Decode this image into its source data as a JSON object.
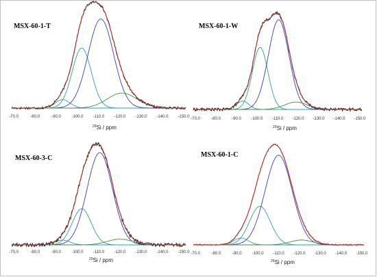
{
  "figure": {
    "border_color": "#bfbfbf",
    "background": "#ffffff"
  },
  "chart_data": [
    {
      "type": "line",
      "title": "MSX-60-1-T",
      "xlabel": {
        "superscript": "29",
        "text": "Si / ppm"
      },
      "x_ticks": [
        "-70.0",
        "-80.0",
        "-90.0",
        "-100.0",
        "-110.0",
        "-120.0",
        "-130.0",
        "-140.0",
        "-150.0"
      ],
      "x_reversed": true,
      "xlim": [
        -69,
        -151
      ],
      "ylim": [
        0,
        1.05
      ],
      "grid": false,
      "components": [
        {
          "center": -93,
          "height": 0.09,
          "width": 3.5,
          "color": "#2f9e9e"
        },
        {
          "center": -102,
          "height": 0.64,
          "width": 4.5,
          "color": "#2f9e9e"
        },
        {
          "center": -111,
          "height": 0.95,
          "width": 6.0,
          "color": "#3a3acf"
        },
        {
          "center": -121,
          "height": 0.16,
          "width": 7.0,
          "color": "#3f8f3f"
        }
      ],
      "experimental": {
        "color": "#222222",
        "noise": 0.012
      },
      "envelope": {
        "color": "#c0392b"
      },
      "baseline": {
        "color": "#7a4fb0"
      }
    },
    {
      "type": "line",
      "title": "MSX-60-1-W",
      "xlabel": {
        "superscript": "29",
        "text": "Si / ppm"
      },
      "x_ticks": [
        "-70.0",
        "-80.0",
        "-90.0",
        "-100.0",
        "-110.0",
        "-120.0",
        "-130.0",
        "-140.0",
        "-150.0"
      ],
      "x_reversed": true,
      "xlim": [
        -69,
        -151
      ],
      "ylim": [
        0,
        1.05
      ],
      "grid": false,
      "components": [
        {
          "center": -93,
          "height": 0.09,
          "width": 3.0,
          "color": "#2f9e9e"
        },
        {
          "center": -101.5,
          "height": 0.67,
          "width": 3.8,
          "color": "#2f9e9e"
        },
        {
          "center": -110.5,
          "height": 0.97,
          "width": 5.0,
          "color": "#3a3acf"
        },
        {
          "center": -119,
          "height": 0.08,
          "width": 5.5,
          "color": "#3f8f3f"
        }
      ],
      "experimental": {
        "color": "#222222",
        "noise": 0.015
      },
      "envelope": {
        "color": "#c0392b"
      },
      "baseline": {
        "color": "#7a4fb0"
      }
    },
    {
      "type": "line",
      "title": "MSX-60-3-C",
      "xlabel": {
        "superscript": "29",
        "text": "Si / ppm"
      },
      "x_ticks": [
        "-70.0",
        "-80.0",
        "-90.0",
        "-100.0",
        "-110.0",
        "-120.0",
        "-130.0",
        "-140.0",
        "-150.0"
      ],
      "x_reversed": true,
      "xlim": [
        -69,
        -151
      ],
      "ylim": [
        0,
        1.05
      ],
      "grid": false,
      "components": [
        {
          "center": -93,
          "height": 0.05,
          "width": 3.5,
          "color": "#2f9e9e"
        },
        {
          "center": -102,
          "height": 0.38,
          "width": 4.5,
          "color": "#2f9e9e"
        },
        {
          "center": -110.5,
          "height": 0.97,
          "width": 6.0,
          "color": "#3a3acf"
        },
        {
          "center": -120,
          "height": 0.06,
          "width": 6.0,
          "color": "#3f8f3f"
        }
      ],
      "experimental": {
        "color": "#222222",
        "noise": 0.018
      },
      "envelope": {
        "color": "#c0392b"
      },
      "baseline": {
        "color": "#7a4fb0"
      }
    },
    {
      "type": "line",
      "title": "MSX-60-1-C",
      "xlabel": {
        "superscript": "29",
        "text": "Si / ppm"
      },
      "x_ticks": [
        "-70.0",
        "-80.0",
        "-90.0",
        "-100.0",
        "-110.0",
        "-120.0",
        "-130.0",
        "-140.0",
        "-150.0"
      ],
      "x_reversed": true,
      "xlim": [
        -69,
        -151
      ],
      "ylim": [
        0,
        1.05
      ],
      "grid": false,
      "components": [
        {
          "center": -92,
          "height": 0.07,
          "width": 3.5,
          "color": "#2f9e9e"
        },
        {
          "center": -101,
          "height": 0.4,
          "width": 5.0,
          "color": "#2f9e9e"
        },
        {
          "center": -110,
          "height": 0.93,
          "width": 6.5,
          "color": "#3a3acf"
        },
        {
          "center": -121,
          "height": 0.05,
          "width": 5.5,
          "color": "#3f8f3f"
        }
      ],
      "experimental": {
        "color": "#7a2a2a",
        "noise": 0.006
      },
      "envelope": {
        "color": "#c0392b"
      },
      "baseline": {
        "color": "#7a4fb0"
      }
    }
  ]
}
